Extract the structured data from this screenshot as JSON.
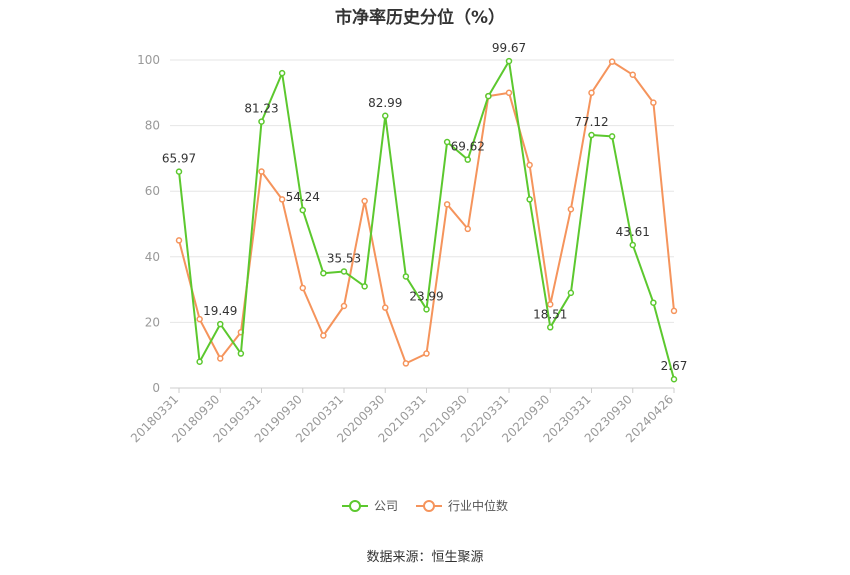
{
  "chart_data": {
    "type": "line",
    "title": "市净率历史分位（%）",
    "ylim": [
      0,
      100
    ],
    "yticks": [
      0,
      20,
      40,
      60,
      80,
      100
    ],
    "x_tick_labels": [
      "20180331",
      "20180930",
      "20190331",
      "20190930",
      "20200331",
      "20200930",
      "20210331",
      "20210930",
      "20220331",
      "20220930",
      "20230331",
      "20230930",
      "20240426"
    ],
    "x_count": 25,
    "grid": true,
    "legend_position": "bottom",
    "series": [
      {
        "name": "公司",
        "color": "#5cc82e",
        "values": [
          65.97,
          8.0,
          19.49,
          10.5,
          81.23,
          96.0,
          54.24,
          35.0,
          35.53,
          31.0,
          82.99,
          34.0,
          23.99,
          75.0,
          69.62,
          89.0,
          99.67,
          57.5,
          18.51,
          29.0,
          77.12,
          76.7,
          43.61,
          26.0,
          2.67
        ],
        "data_labels": [
          {
            "index": 0,
            "text": "65.97"
          },
          {
            "index": 2,
            "text": "19.49"
          },
          {
            "index": 4,
            "text": "81.23"
          },
          {
            "index": 6,
            "text": "54.24"
          },
          {
            "index": 8,
            "text": "35.53"
          },
          {
            "index": 10,
            "text": "82.99"
          },
          {
            "index": 12,
            "text": "23.99"
          },
          {
            "index": 14,
            "text": "69.62"
          },
          {
            "index": 16,
            "text": "99.67"
          },
          {
            "index": 18,
            "text": "18.51"
          },
          {
            "index": 20,
            "text": "77.12"
          },
          {
            "index": 22,
            "text": "43.61"
          },
          {
            "index": 24,
            "text": "2.67"
          }
        ]
      },
      {
        "name": "行业中位数",
        "color": "#f5945c",
        "values": [
          45.0,
          21.0,
          9.0,
          17.0,
          66.0,
          57.5,
          30.5,
          16.0,
          25.0,
          57.0,
          24.5,
          7.5,
          10.5,
          56.0,
          48.5,
          89.0,
          90.0,
          68.0,
          25.5,
          54.5,
          90.0,
          99.5,
          95.5,
          87.0,
          23.5
        ],
        "data_labels": []
      }
    ]
  },
  "legend": {
    "company_label": "公司",
    "industry_label": "行业中位数"
  },
  "source_text": "数据来源：恒生聚源"
}
